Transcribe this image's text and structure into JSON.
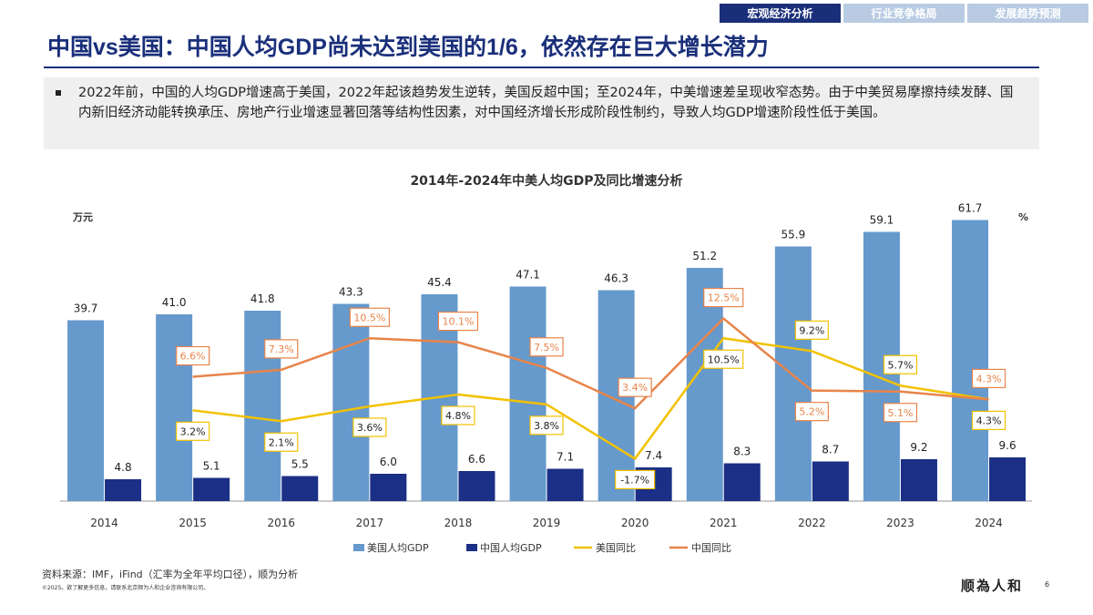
{
  "nav": {
    "tabs": [
      {
        "label": "宏观经济分析",
        "active": true
      },
      {
        "label": "行业竞争格局",
        "active": false
      },
      {
        "label": "发展趋势预测",
        "active": false
      }
    ]
  },
  "header": {
    "title": "中国vs美国：中国人均GDP尚未达到美国的1/6，依然存在巨大增长潜力"
  },
  "summary": {
    "text": "2022年前，中国的人均GDP增速高于美国，2022年起该趋势发生逆转，美国反超中国；至2024年，中美增速差呈现收窄态势。由于中美贸易摩擦持续发酵、国内新旧经济动能转换承压、房地产行业增速显著回落等结构性因素，对中国经济增长形成阶段性制约，导致人均GDP增速阶段性低于美国。"
  },
  "chart_data": {
    "type": "bar+line",
    "title": "2014年-2024年中美人均GDP及同比增速分析",
    "ylabel": "万元",
    "y2label": "%",
    "ylim": [
      0,
      65
    ],
    "y2lim": [
      -6,
      24
    ],
    "grid": false,
    "legend": "bottom",
    "categories": [
      "2014",
      "2015",
      "2016",
      "2017",
      "2018",
      "2019",
      "2020",
      "2021",
      "2022",
      "2023",
      "2024"
    ],
    "series": [
      {
        "name": "美国人均GDP",
        "type": "bar",
        "color": "#6699cc",
        "values": [
          39.7,
          41.0,
          41.8,
          43.3,
          45.4,
          47.1,
          46.3,
          51.2,
          55.9,
          59.1,
          61.7
        ],
        "labels": [
          "39.7",
          "41.0",
          "41.8",
          "43.3",
          "45.4",
          "47.1",
          "46.3",
          "51.2",
          "55.9",
          "59.1",
          "61.7"
        ]
      },
      {
        "name": "中国人均GDP",
        "type": "bar",
        "color": "#1a2f85",
        "values": [
          4.8,
          5.1,
          5.5,
          6.0,
          6.6,
          7.1,
          7.4,
          8.3,
          8.7,
          9.2,
          9.6
        ],
        "labels": [
          "4.8",
          "5.1",
          "5.5",
          "6.0",
          "6.6",
          "7.1",
          "7.4",
          "8.3",
          "8.7",
          "9.2",
          "9.6"
        ]
      },
      {
        "name": "美国同比",
        "type": "line",
        "color": "#f2c200",
        "values": [
          null,
          3.2,
          2.1,
          3.6,
          4.8,
          3.8,
          -1.7,
          10.5,
          9.2,
          5.7,
          4.3
        ],
        "labels": [
          null,
          "3.2%",
          "2.1%",
          "3.6%",
          "4.8%",
          "3.8%",
          "-1.7%",
          "10.5%",
          "9.2%",
          "5.7%",
          "4.3%"
        ]
      },
      {
        "name": "中国同比",
        "type": "line",
        "color": "#e8844a",
        "values": [
          null,
          6.6,
          7.3,
          10.5,
          10.1,
          7.5,
          3.4,
          12.5,
          5.2,
          5.1,
          4.3
        ],
        "labels": [
          null,
          "6.6%",
          "7.3%",
          "10.5%",
          "10.1%",
          "7.5%",
          "3.4%",
          "12.5%",
          "5.2%",
          "5.1%",
          "4.3%"
        ]
      }
    ]
  },
  "footer": {
    "source": "资料来源：IMF，iFind（汇率为全年平均口径），顺为分析",
    "copyright": "©2025。欲了解更多信息，请联系北京顺为人和企业咨询有限公司。",
    "logo": "顺為人和",
    "page": "6"
  }
}
